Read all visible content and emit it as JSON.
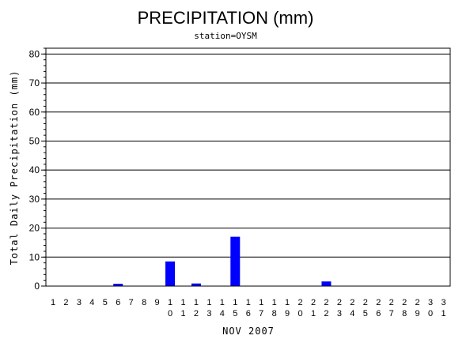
{
  "chart_data": {
    "type": "bar",
    "title": "PRECIPITATION (mm)",
    "subtitle": "station=OYSM",
    "xlabel": "NOV 2007",
    "ylabel": "Total Daily Precipitation (mm)",
    "ylim": [
      0,
      82
    ],
    "yticks": [
      0,
      10,
      20,
      30,
      40,
      50,
      60,
      70,
      80
    ],
    "grid": true,
    "bar_color": "#0000ff",
    "categories": [
      "1",
      "2",
      "3",
      "4",
      "5",
      "6",
      "7",
      "8",
      "9",
      "10",
      "11",
      "12",
      "13",
      "14",
      "15",
      "16",
      "17",
      "18",
      "19",
      "20",
      "21",
      "22",
      "23",
      "24",
      "25",
      "26",
      "27",
      "28",
      "29",
      "30",
      "31"
    ],
    "values": [
      0,
      0,
      0,
      0,
      0,
      0.8,
      0,
      0,
      0,
      8.5,
      0,
      0.9,
      0,
      0,
      17.0,
      0,
      0,
      0,
      0,
      0,
      0,
      1.6,
      0,
      0,
      0,
      0,
      0,
      0,
      0,
      0,
      0
    ]
  }
}
